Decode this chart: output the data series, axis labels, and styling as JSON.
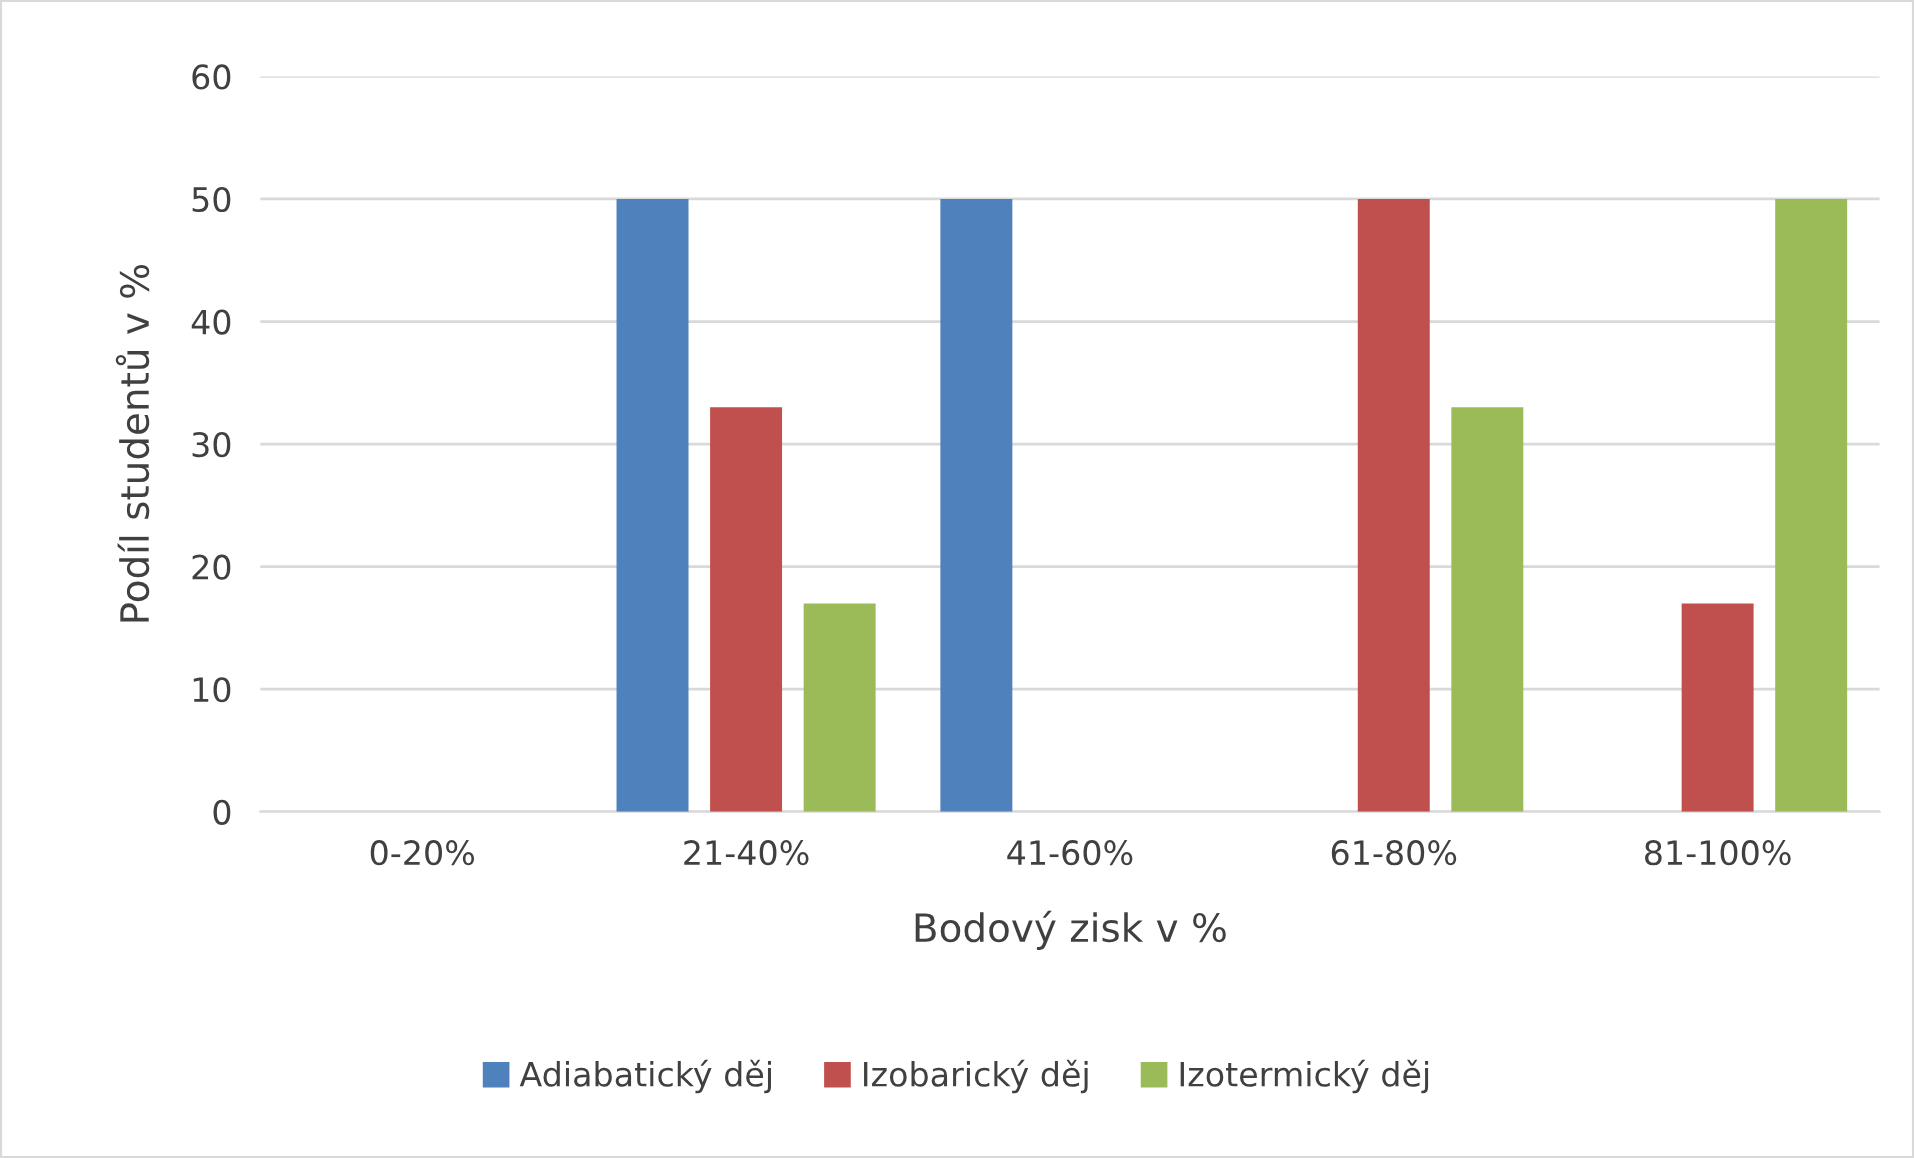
{
  "chart_data": {
    "type": "bar",
    "xlabel": "Bodový zisk v %",
    "ylabel": "Podíl studentů v %",
    "categories": [
      "0-20%",
      "21-40%",
      "41-60%",
      "61-80%",
      "81-100%"
    ],
    "series": [
      {
        "name": "Adiabatický děj",
        "color": "#4f81bd",
        "values": [
          0,
          50,
          50,
          0,
          0
        ]
      },
      {
        "name": "Izobarický děj",
        "color": "#c0504d",
        "values": [
          0,
          33,
          0,
          50,
          17
        ]
      },
      {
        "name": "Izotermický děj",
        "color": "#9bbb59",
        "values": [
          0,
          17,
          0,
          33,
          50
        ]
      }
    ],
    "ylim": [
      0,
      60
    ],
    "yticks": [
      0,
      10,
      20,
      30,
      40,
      50,
      60
    ],
    "grid": "y",
    "legend": "bottom"
  }
}
